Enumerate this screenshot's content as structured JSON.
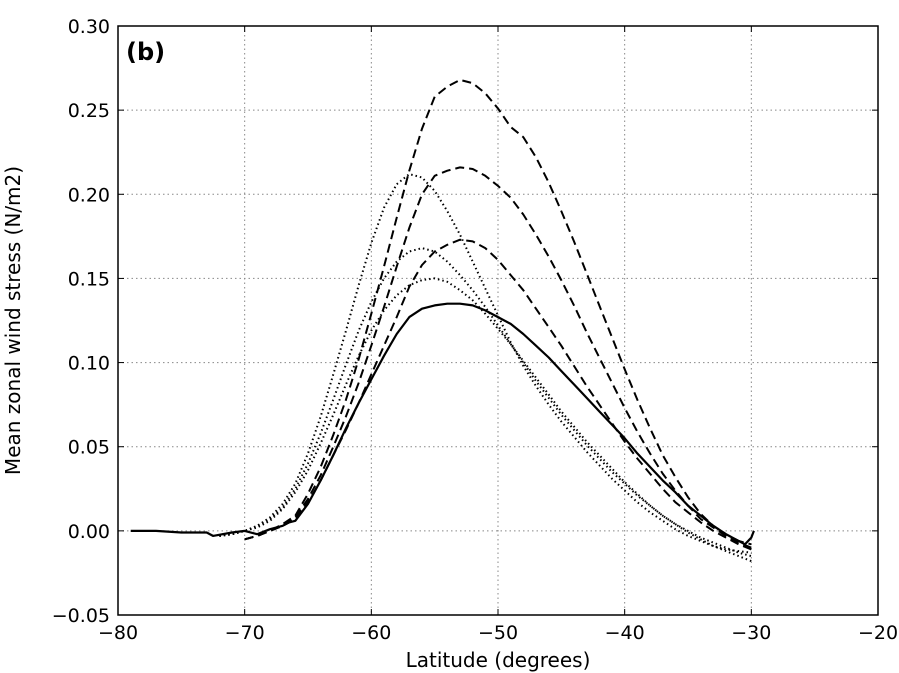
{
  "chart_data": {
    "type": "line",
    "panel_label": "(b)",
    "xlabel": "Latitude (degrees)",
    "ylabel": "Mean zonal wind stress (N/m2)",
    "xlim": [
      -80,
      -20
    ],
    "ylim": [
      -0.05,
      0.3
    ],
    "x_ticks": [
      -80,
      -70,
      -60,
      -50,
      -40,
      -30,
      -20
    ],
    "y_ticks": [
      -0.05,
      0.0,
      0.05,
      0.1,
      0.15,
      0.2,
      0.25,
      0.3
    ],
    "x_tick_labels": [
      "−80",
      "−70",
      "−60",
      "−50",
      "−40",
      "−30",
      "−20"
    ],
    "y_tick_labels": [
      "−0.05",
      "0.00",
      "0.05",
      "0.10",
      "0.15",
      "0.20",
      "0.25",
      "0.30"
    ],
    "grid": true,
    "series": [
      {
        "style": "solid",
        "x": [
          -79,
          -77,
          -75,
          -73,
          -72.5,
          -71,
          -70,
          -69,
          -68,
          -67,
          -66.5,
          -66,
          -65,
          -64,
          -63,
          -62,
          -61,
          -60,
          -59,
          -58,
          -57,
          -56,
          -55,
          -54,
          -53,
          -52,
          -51,
          -50,
          -49,
          -48,
          -47,
          -46,
          -45,
          -44,
          -43,
          -42,
          -41,
          -40,
          -39,
          -38,
          -37,
          -36,
          -35,
          -34,
          -33,
          -32,
          -31,
          -30.5,
          -30,
          -29.8
        ],
        "y": [
          0.0,
          0.0,
          -0.001,
          -0.001,
          -0.003,
          -0.001,
          0.0,
          -0.002,
          0.001,
          0.003,
          0.005,
          0.006,
          0.016,
          0.03,
          0.045,
          0.061,
          0.076,
          0.09,
          0.104,
          0.117,
          0.127,
          0.132,
          0.134,
          0.135,
          0.135,
          0.134,
          0.131,
          0.127,
          0.123,
          0.117,
          0.11,
          0.103,
          0.095,
          0.087,
          0.079,
          0.071,
          0.063,
          0.055,
          0.046,
          0.038,
          0.03,
          0.023,
          0.015,
          0.009,
          0.003,
          -0.002,
          -0.006,
          -0.008,
          -0.004,
          0.0
        ]
      },
      {
        "style": "dashed",
        "x": [
          -70,
          -69,
          -68,
          -67,
          -66,
          -65,
          -64,
          -63,
          -62,
          -61,
          -60,
          -59,
          -58,
          -57,
          -56,
          -55,
          -54,
          -53,
          -52,
          -51,
          -50,
          -49,
          -48,
          -47,
          -46,
          -45,
          -44,
          -43,
          -42,
          -41,
          -40,
          -39,
          -38,
          -37,
          -36,
          -35,
          -34,
          -33,
          -32,
          -31,
          -30
        ],
        "y": [
          -0.005,
          -0.003,
          0.0,
          0.004,
          0.009,
          0.022,
          0.038,
          0.057,
          0.078,
          0.102,
          0.129,
          0.157,
          0.186,
          0.214,
          0.239,
          0.258,
          0.264,
          0.268,
          0.266,
          0.26,
          0.251,
          0.24,
          0.234,
          0.222,
          0.207,
          0.19,
          0.172,
          0.153,
          0.134,
          0.115,
          0.096,
          0.078,
          0.061,
          0.045,
          0.032,
          0.02,
          0.01,
          0.003,
          -0.002,
          -0.006,
          -0.008
        ]
      },
      {
        "style": "dashed",
        "x": [
          -70,
          -69,
          -68,
          -67,
          -66,
          -65,
          -64,
          -63,
          -62,
          -61,
          -60,
          -59,
          -58,
          -57,
          -56,
          -55,
          -54,
          -53,
          -52,
          -51,
          -50,
          -49,
          -48,
          -47,
          -46,
          -45,
          -44,
          -43,
          -42,
          -41,
          -40,
          -39,
          -38,
          -37,
          -36,
          -35,
          -34,
          -33,
          -32,
          -31,
          -30
        ],
        "y": [
          -0.005,
          -0.003,
          0.0,
          0.003,
          0.008,
          0.019,
          0.033,
          0.05,
          0.068,
          0.088,
          0.11,
          0.133,
          0.157,
          0.18,
          0.2,
          0.211,
          0.214,
          0.216,
          0.215,
          0.211,
          0.205,
          0.198,
          0.188,
          0.176,
          0.163,
          0.149,
          0.134,
          0.118,
          0.103,
          0.088,
          0.073,
          0.059,
          0.046,
          0.034,
          0.024,
          0.015,
          0.007,
          0.002,
          -0.003,
          -0.007,
          -0.01
        ]
      },
      {
        "style": "dashed",
        "x": [
          -70,
          -69,
          -68,
          -67,
          -66,
          -65,
          -64,
          -63,
          -62,
          -61,
          -60,
          -59,
          -58,
          -57,
          -56,
          -55,
          -54,
          -53,
          -52,
          -51,
          -50,
          -49,
          -48,
          -47,
          -46,
          -45,
          -44,
          -43,
          -42,
          -41,
          -40,
          -39,
          -38,
          -37,
          -36,
          -35,
          -34,
          -33,
          -32,
          -31,
          -30
        ],
        "y": [
          -0.005,
          -0.003,
          0.0,
          0.003,
          0.007,
          0.017,
          0.03,
          0.045,
          0.06,
          0.076,
          0.093,
          0.11,
          0.127,
          0.145,
          0.158,
          0.166,
          0.17,
          0.173,
          0.172,
          0.168,
          0.161,
          0.152,
          0.143,
          0.132,
          0.121,
          0.11,
          0.098,
          0.086,
          0.075,
          0.064,
          0.053,
          0.043,
          0.034,
          0.025,
          0.017,
          0.011,
          0.005,
          0.0,
          -0.004,
          -0.008,
          -0.011
        ]
      },
      {
        "style": "dotted",
        "x": [
          -72,
          -71,
          -70,
          -69,
          -68,
          -67,
          -66,
          -65,
          -64,
          -63,
          -62,
          -61,
          -60,
          -59,
          -58,
          -57,
          -56,
          -55,
          -54,
          -53,
          -52,
          -51,
          -50,
          -49,
          -48,
          -47,
          -46,
          -45,
          -44,
          -43,
          -42,
          -41,
          -40,
          -39,
          -38,
          -37,
          -36,
          -35,
          -34,
          -33,
          -32,
          -31,
          -30
        ],
        "y": [
          -0.003,
          -0.002,
          0.0,
          0.003,
          0.008,
          0.016,
          0.028,
          0.046,
          0.068,
          0.093,
          0.119,
          0.146,
          0.171,
          0.192,
          0.206,
          0.212,
          0.21,
          0.202,
          0.19,
          0.176,
          0.16,
          0.144,
          0.128,
          0.112,
          0.098,
          0.086,
          0.075,
          0.065,
          0.056,
          0.047,
          0.039,
          0.031,
          0.024,
          0.017,
          0.011,
          0.006,
          0.001,
          -0.003,
          -0.006,
          -0.009,
          -0.011,
          -0.012,
          -0.013
        ]
      },
      {
        "style": "dotted",
        "x": [
          -72,
          -71,
          -70,
          -69,
          -68,
          -67,
          -66,
          -65,
          -64,
          -63,
          -62,
          -61,
          -60,
          -59,
          -58,
          -57,
          -56,
          -55,
          -54,
          -53,
          -52,
          -51,
          -50,
          -49,
          -48,
          -47,
          -46,
          -45,
          -44,
          -43,
          -42,
          -41,
          -40,
          -39,
          -38,
          -37,
          -36,
          -35,
          -34,
          -33,
          -32,
          -31,
          -30
        ],
        "y": [
          -0.003,
          -0.002,
          0.0,
          0.003,
          0.007,
          0.014,
          0.025,
          0.04,
          0.058,
          0.078,
          0.099,
          0.119,
          0.136,
          0.15,
          0.16,
          0.166,
          0.168,
          0.166,
          0.16,
          0.152,
          0.143,
          0.133,
          0.122,
          0.111,
          0.1,
          0.089,
          0.079,
          0.069,
          0.06,
          0.051,
          0.043,
          0.035,
          0.028,
          0.021,
          0.015,
          0.009,
          0.004,
          0.0,
          -0.004,
          -0.007,
          -0.01,
          -0.013,
          -0.015
        ]
      },
      {
        "style": "dotted",
        "x": [
          -72,
          -71,
          -70,
          -69,
          -68,
          -67,
          -66,
          -65,
          -64,
          -63,
          -62,
          -61,
          -60,
          -59,
          -58,
          -57,
          -56,
          -55,
          -54,
          -53,
          -52,
          -51,
          -50,
          -49,
          -48,
          -47,
          -46,
          -45,
          -44,
          -43,
          -42,
          -41,
          -40,
          -39,
          -38,
          -37,
          -36,
          -35,
          -34,
          -33,
          -32,
          -31,
          -30
        ],
        "y": [
          -0.003,
          -0.002,
          0.0,
          0.002,
          0.006,
          0.013,
          0.023,
          0.036,
          0.052,
          0.069,
          0.087,
          0.104,
          0.119,
          0.131,
          0.14,
          0.146,
          0.149,
          0.15,
          0.148,
          0.143,
          0.137,
          0.129,
          0.12,
          0.111,
          0.101,
          0.091,
          0.081,
          0.071,
          0.062,
          0.053,
          0.045,
          0.037,
          0.029,
          0.022,
          0.015,
          0.009,
          0.004,
          -0.001,
          -0.005,
          -0.009,
          -0.012,
          -0.015,
          -0.018
        ]
      }
    ]
  }
}
